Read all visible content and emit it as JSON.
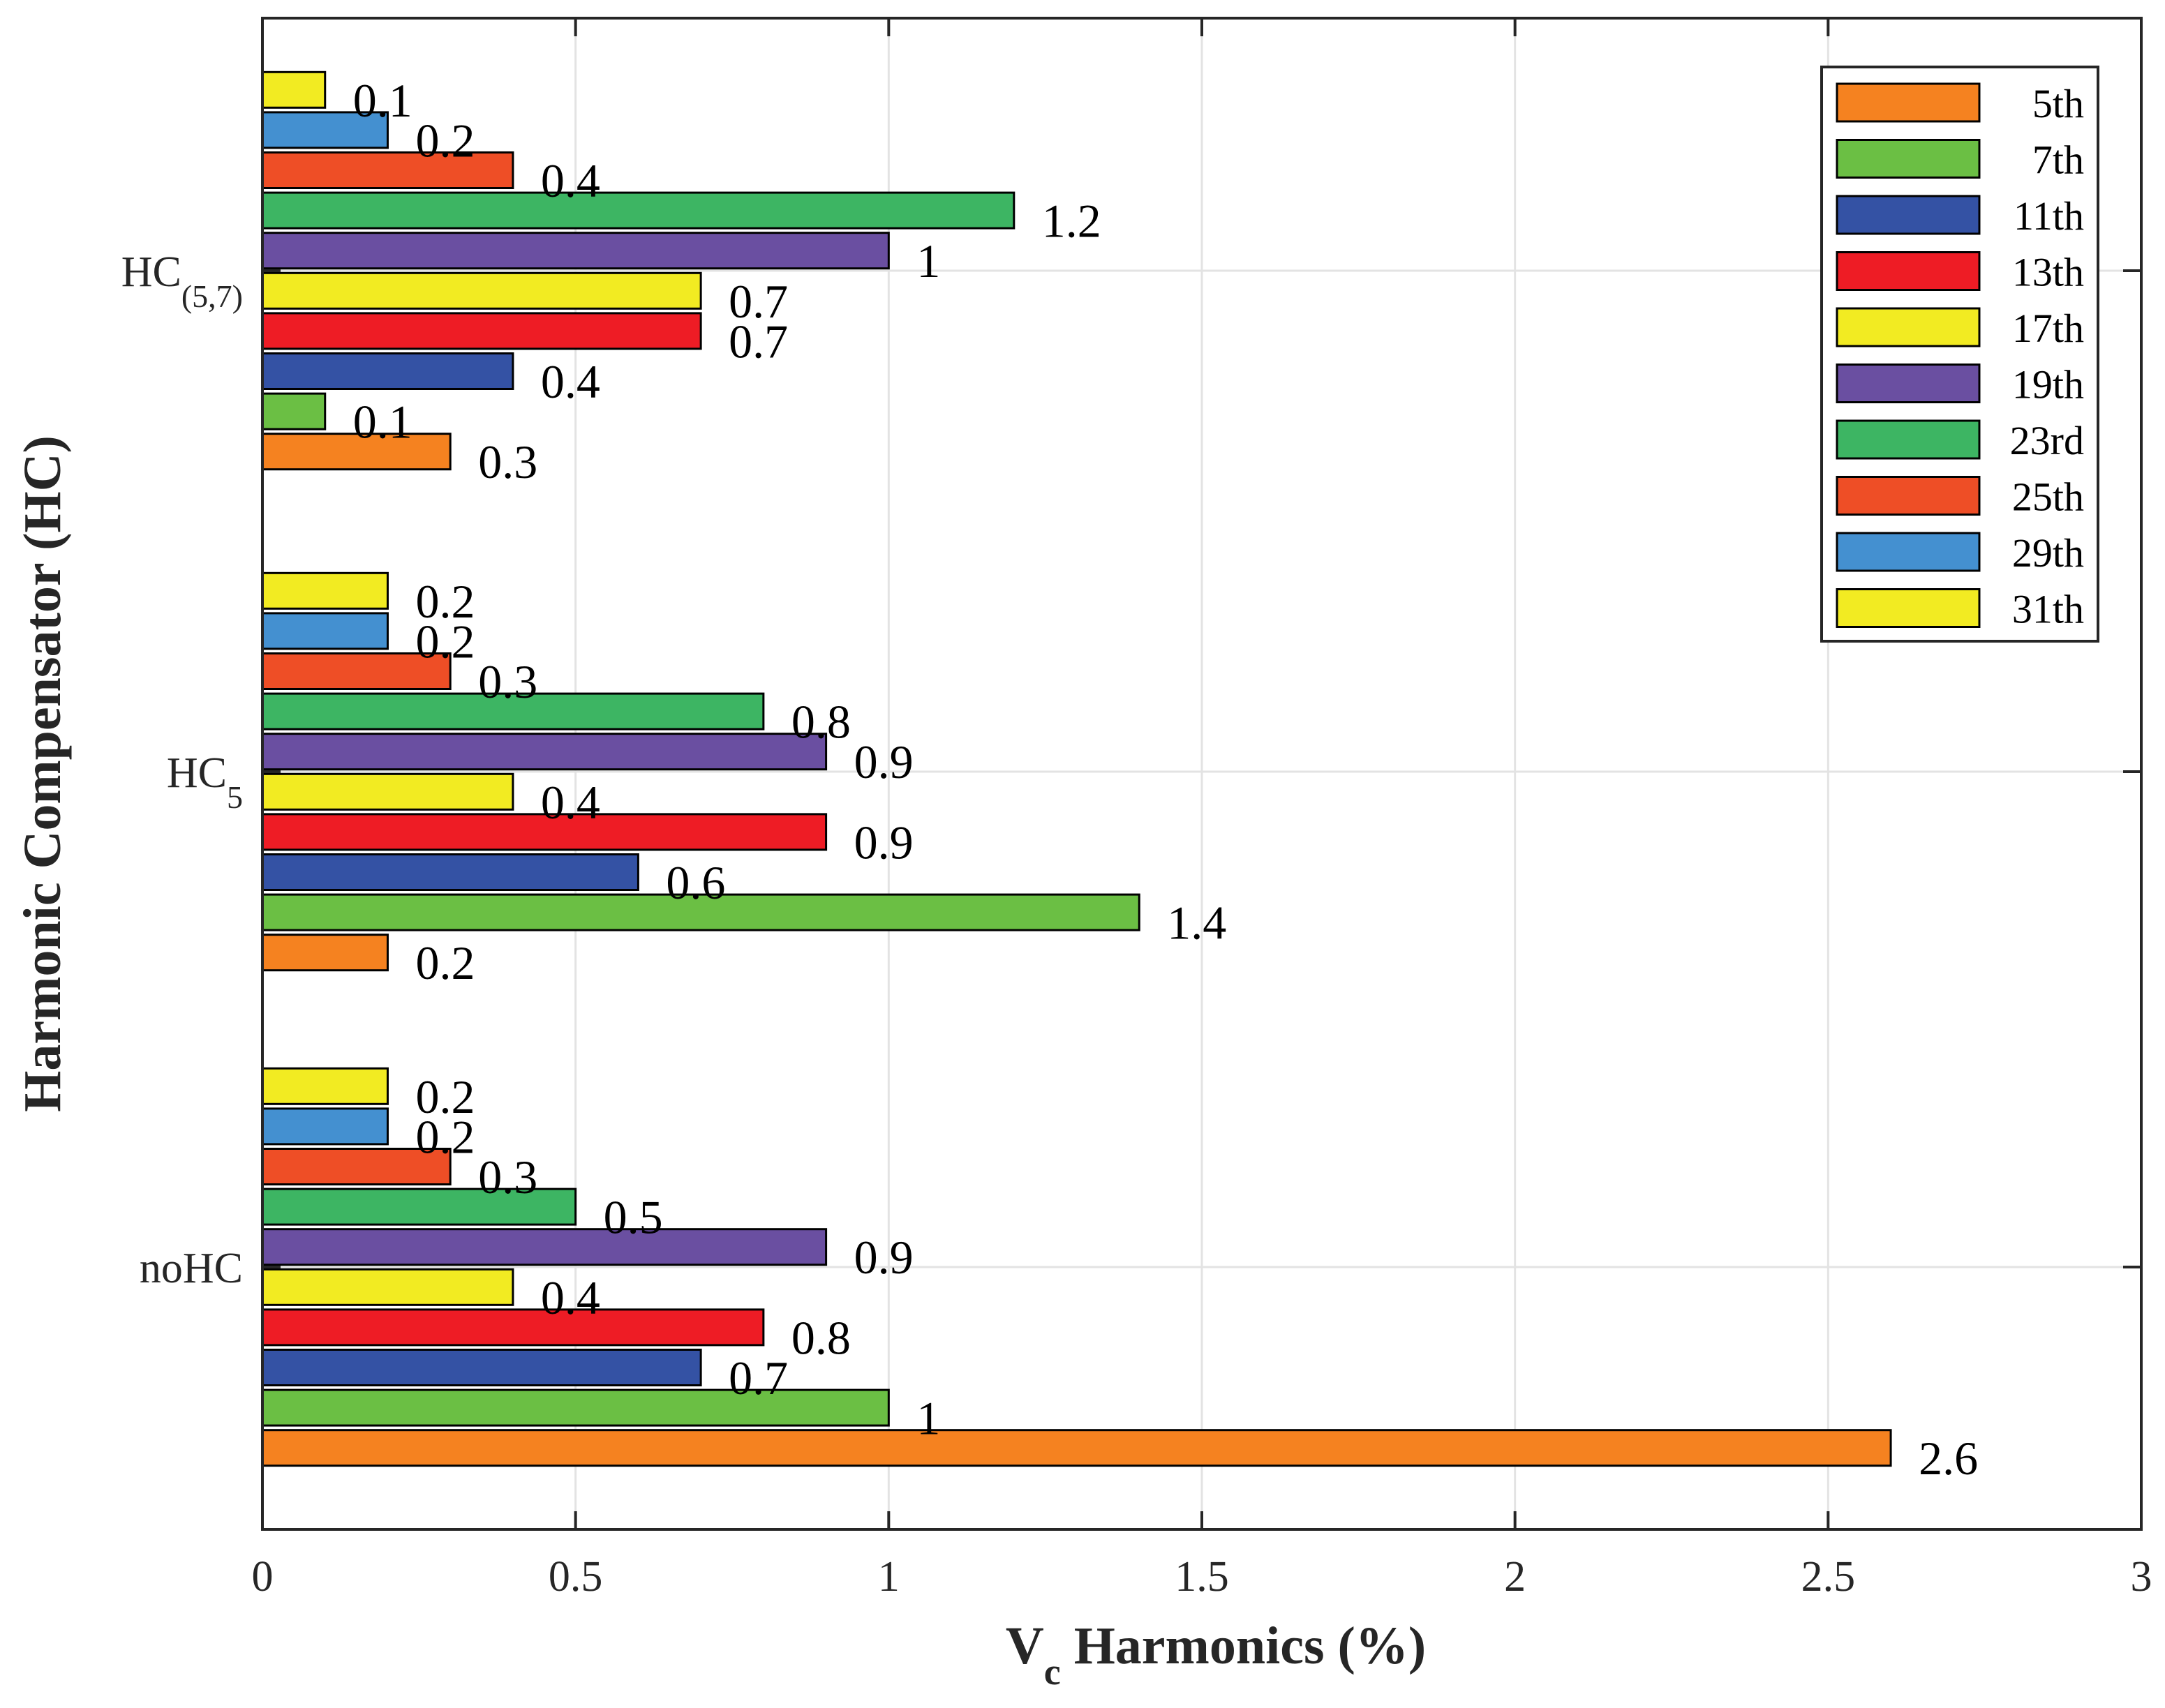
{
  "chart_data": {
    "type": "bar",
    "orientation": "horizontal",
    "xlabel": {
      "main": "V",
      "sub": "c",
      "rest": " Harmonics (%)"
    },
    "ylabel": "Harmonic Compensator (HC)",
    "xlim": [
      0,
      3
    ],
    "xticks": [
      "0",
      "0.5",
      "1",
      "1.5",
      "2",
      "2.5",
      "3"
    ],
    "xtick_values": [
      0,
      0.5,
      1,
      1.5,
      2,
      2.5,
      3
    ],
    "grid": true,
    "legend_position": "top-right",
    "categories": [
      {
        "main": "noHC",
        "sub": ""
      },
      {
        "main": "HC",
        "sub": "5"
      },
      {
        "main": "HC",
        "sub": "(5,7)"
      }
    ],
    "series": [
      {
        "name": "5th",
        "color": "#F58220",
        "values": [
          2.6,
          0.2,
          0.3
        ],
        "labels": [
          "2.6",
          "0.2",
          "0.3"
        ]
      },
      {
        "name": "7th",
        "color": "#6BBF44",
        "values": [
          1.0,
          1.4,
          0.1
        ],
        "labels": [
          "1",
          "1.4",
          "0.1"
        ]
      },
      {
        "name": "11th",
        "color": "#3452A4",
        "values": [
          0.7,
          0.6,
          0.4
        ],
        "labels": [
          "0.7",
          "0.6",
          "0.4"
        ]
      },
      {
        "name": "13th",
        "color": "#EE1C25",
        "values": [
          0.8,
          0.9,
          0.7
        ],
        "labels": [
          "0.8",
          "0.9",
          "0.7"
        ]
      },
      {
        "name": "17th",
        "color": "#F2EB22",
        "values": [
          0.4,
          0.4,
          0.7
        ],
        "labels": [
          "0.4",
          "0.4",
          "0.7"
        ]
      },
      {
        "name": "19th",
        "color": "#6A4FA1",
        "values": [
          0.9,
          0.9,
          1.0
        ],
        "labels": [
          "0.9",
          "0.9",
          "1"
        ]
      },
      {
        "name": "23rd",
        "color": "#3DB563",
        "values": [
          0.5,
          0.8,
          1.2
        ],
        "labels": [
          "0.5",
          "0.8",
          "1.2"
        ]
      },
      {
        "name": "25th",
        "color": "#EE4E26",
        "values": [
          0.3,
          0.3,
          0.4
        ],
        "labels": [
          "0.3",
          "0.3",
          "0.4"
        ]
      },
      {
        "name": "29th",
        "color": "#4490D0",
        "values": [
          0.2,
          0.2,
          0.2
        ],
        "labels": [
          "0.2",
          "0.2",
          "0.2"
        ]
      },
      {
        "name": "31th",
        "color": "#F2EB22",
        "values": [
          0.2,
          0.2,
          0.1
        ],
        "labels": [
          "0.2",
          "0.2",
          "0.1"
        ]
      }
    ]
  }
}
